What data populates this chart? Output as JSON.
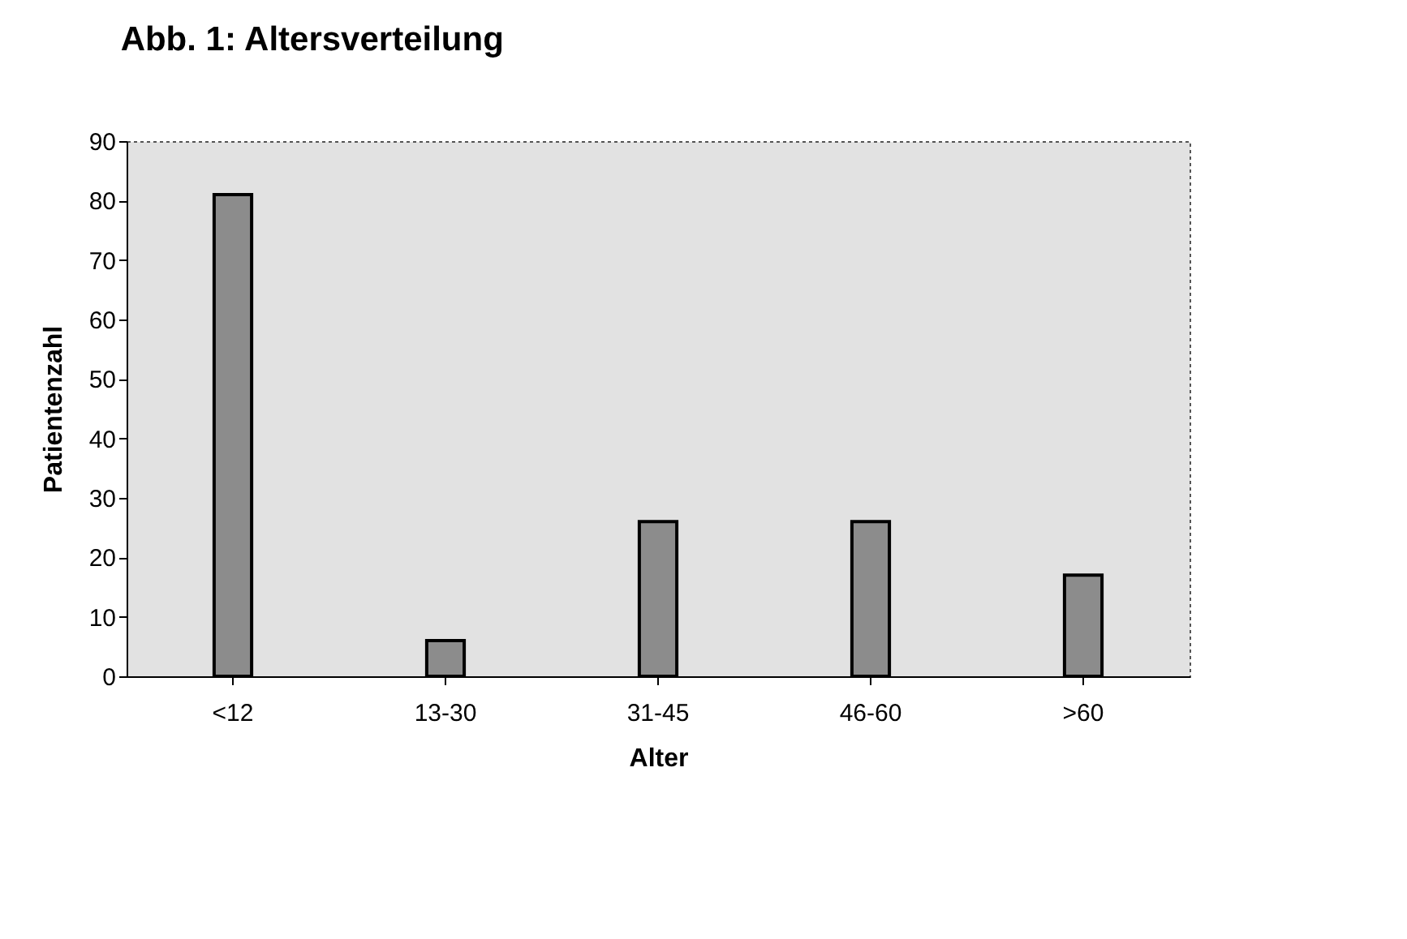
{
  "chart_data": {
    "type": "bar",
    "title": "Abb. 1:  Altersverteilung",
    "xlabel": "Alter",
    "ylabel": "Patientenzahl",
    "categories": [
      "<12",
      "13-30",
      "31-45",
      "46-60",
      ">60"
    ],
    "values": [
      81,
      6,
      26,
      26,
      17
    ],
    "color": "#8c8c8c",
    "ylim": [
      0,
      90
    ],
    "yticks": [
      0,
      10,
      20,
      30,
      40,
      50,
      60,
      70,
      80,
      90
    ],
    "grid": false
  }
}
